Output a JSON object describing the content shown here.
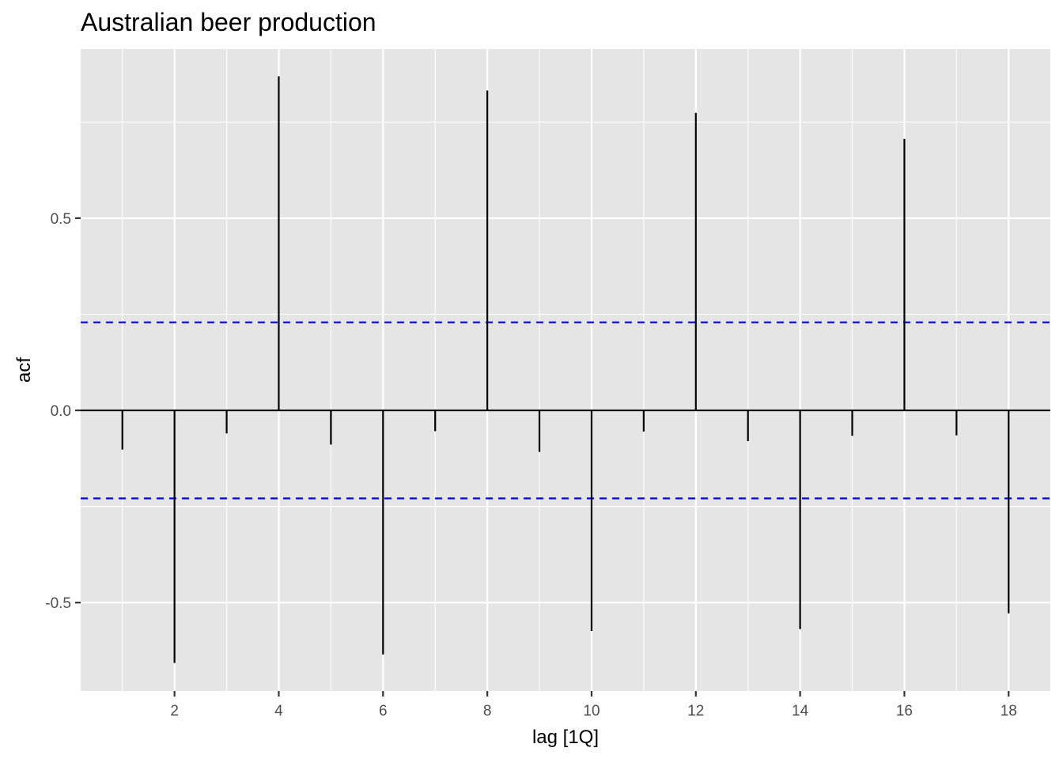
{
  "chart_data": {
    "type": "bar",
    "title": "Australian beer production",
    "xlabel": "lag [1Q]",
    "ylabel": "acf",
    "x": [
      1,
      2,
      3,
      4,
      5,
      6,
      7,
      8,
      9,
      10,
      11,
      12,
      13,
      14,
      15,
      16,
      17,
      18
    ],
    "values": [
      -0.102,
      -0.657,
      -0.06,
      0.869,
      -0.089,
      -0.635,
      -0.054,
      0.832,
      -0.108,
      -0.574,
      -0.055,
      0.774,
      -0.08,
      -0.569,
      -0.066,
      0.706,
      -0.065,
      -0.528
    ],
    "confidence_limit": 0.229,
    "xlim": [
      0.2,
      18.8
    ],
    "ylim": [
      -0.73,
      0.94
    ],
    "x_ticks": [
      2,
      4,
      6,
      8,
      10,
      12,
      14,
      16,
      18
    ],
    "x_tick_labels": [
      "2",
      "4",
      "6",
      "8",
      "10",
      "12",
      "14",
      "16",
      "18"
    ],
    "y_ticks": [
      -0.5,
      0.0,
      0.5
    ],
    "y_tick_labels": [
      "-0.5",
      "0.0",
      "0.5"
    ],
    "grid": true,
    "colors": {
      "panel": "#e5e5e5",
      "grid": "#ffffff",
      "bars": "#000000",
      "confidence": "#0000ff"
    }
  }
}
